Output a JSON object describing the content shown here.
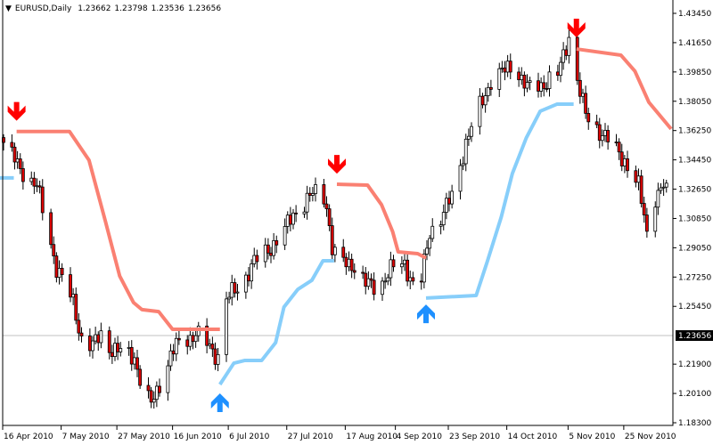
{
  "header": {
    "symbol_timeframe": "EURUSD,Daily",
    "open": "1.23662",
    "high": "1.23798",
    "low": "1.23536",
    "close": "1.23656"
  },
  "colors": {
    "up_body": "#ffffff",
    "down_body": "#e00000",
    "candle_outline": "#000000",
    "upper_line": "#fa8072",
    "lower_line": "#87cefa",
    "sell_arrow": "#ff0000",
    "buy_arrow": "#1e90ff",
    "current_price_line": "#c0c0c0"
  },
  "chart_data": {
    "type": "candlestick",
    "symbol": "EURUSD",
    "timeframe": "Daily",
    "ylim": [
      1.183,
      1.4345
    ],
    "xlim": [
      "2010-04-16",
      "2010-12-12"
    ],
    "y_ticks": [
      "1.43450",
      "1.41650",
      "1.39850",
      "1.38050",
      "1.36250",
      "1.34450",
      "1.32650",
      "1.30850",
      "1.29050",
      "1.27250",
      "1.25450",
      "1.21900",
      "1.20100",
      "1.18300"
    ],
    "x_ticks": [
      {
        "label": "16 Apr 2010",
        "date": "2010-04-16"
      },
      {
        "label": "7 May 2010",
        "date": "2010-05-07"
      },
      {
        "label": "27 May 2010",
        "date": "2010-05-27"
      },
      {
        "label": "16 Jun 2010",
        "date": "2010-06-16"
      },
      {
        "label": "6 Jul 2010",
        "date": "2010-07-06"
      },
      {
        "label": "27 Jul 2010",
        "date": "2010-07-27"
      },
      {
        "label": "17 Aug 2010",
        "date": "2010-08-17"
      },
      {
        "label": "4 Sep 2010",
        "date": "2010-09-04"
      },
      {
        "label": "23 Sep 2010",
        "date": "2010-09-23"
      },
      {
        "label": "14 Oct 2010",
        "date": "2010-10-14"
      },
      {
        "label": "5 Nov 2010",
        "date": "2010-11-05"
      },
      {
        "label": "25 Nov 2010",
        "date": "2010-11-25"
      }
    ],
    "current_price": 1.23656,
    "current_price_label": "1.23656",
    "close_path": [
      [
        "2010-04-16",
        1.3552
      ],
      [
        "2010-04-21",
        1.3415
      ],
      [
        "2010-04-28",
        1.3279
      ],
      [
        "2010-05-02",
        1.3005
      ],
      [
        "2010-05-05",
        1.2786
      ],
      [
        "2010-05-08",
        1.2677
      ],
      [
        "2010-05-11",
        1.2568
      ],
      [
        "2010-05-14",
        1.2349
      ],
      [
        "2010-05-18",
        1.2295
      ],
      [
        "2010-05-21",
        1.2377
      ],
      [
        "2010-05-24",
        1.2295
      ],
      [
        "2010-05-27",
        1.2267
      ],
      [
        "2010-06-02",
        1.224
      ],
      [
        "2010-06-05",
        1.2021
      ],
      [
        "2010-06-08",
        1.1939
      ],
      [
        "2010-06-11",
        1.2076
      ],
      [
        "2010-06-15",
        1.224
      ],
      [
        "2010-06-18",
        1.2322
      ],
      [
        "2010-06-21",
        1.2349
      ],
      [
        "2010-06-24",
        1.2377
      ],
      [
        "2010-06-29",
        1.2295
      ],
      [
        "2010-07-02",
        1.224
      ],
      [
        "2010-07-04",
        1.2568
      ],
      [
        "2010-07-07",
        1.2623
      ],
      [
        "2010-07-10",
        1.2677
      ],
      [
        "2010-07-15",
        1.2814
      ],
      [
        "2010-07-20",
        1.2896
      ],
      [
        "2010-07-25",
        1.2978
      ],
      [
        "2010-07-29",
        1.3115
      ],
      [
        "2010-08-03",
        1.3197
      ],
      [
        "2010-08-08",
        1.3279
      ],
      [
        "2010-08-10",
        1.317
      ],
      [
        "2010-08-12",
        1.2896
      ],
      [
        "2010-08-14",
        1.2814
      ],
      [
        "2010-08-19",
        1.2814
      ],
      [
        "2010-08-24",
        1.2677
      ],
      [
        "2010-08-29",
        1.2677
      ],
      [
        "2010-09-03",
        1.2786
      ],
      [
        "2010-09-07",
        1.2814
      ],
      [
        "2010-09-10",
        1.2677
      ],
      [
        "2010-09-13",
        1.2705
      ],
      [
        "2010-09-16",
        1.3005
      ],
      [
        "2010-09-21",
        1.3115
      ],
      [
        "2010-09-24",
        1.3224
      ],
      [
        "2010-09-29",
        1.3552
      ],
      [
        "2010-10-04",
        1.3771
      ],
      [
        "2010-10-08",
        1.3935
      ],
      [
        "2010-10-13",
        1.399
      ],
      [
        "2010-10-16",
        1.4044
      ],
      [
        "2010-10-21",
        1.388
      ],
      [
        "2010-10-26",
        1.3908
      ],
      [
        "2010-11-01",
        1.3962
      ],
      [
        "2010-11-05",
        1.4208
      ],
      [
        "2010-11-08",
        1.3935
      ],
      [
        "2010-11-11",
        1.3716
      ],
      [
        "2010-11-17",
        1.3607
      ],
      [
        "2010-11-25",
        1.3443
      ],
      [
        "2010-11-30",
        1.3279
      ],
      [
        "2010-12-03",
        1.3005
      ],
      [
        "2010-12-06",
        1.3224
      ],
      [
        "2010-12-09",
        1.3279
      ],
      [
        "2010-12-11",
        1.3197
      ]
    ],
    "upper_lines": [
      [
        [
          "2010-04-21",
          1.3619
        ],
        [
          "2010-05-10",
          1.3619
        ],
        [
          "2010-05-17",
          1.3443
        ],
        [
          "2010-05-23",
          1.306
        ],
        [
          "2010-05-28",
          1.2732
        ],
        [
          "2010-06-02",
          1.2568
        ],
        [
          "2010-06-05",
          1.2525
        ],
        [
          "2010-06-11",
          1.2513
        ],
        [
          "2010-06-16",
          1.2404
        ],
        [
          "2010-07-03",
          1.2404
        ]
      ],
      [
        [
          "2010-08-14",
          1.3295
        ],
        [
          "2010-08-25",
          1.329
        ],
        [
          "2010-08-30",
          1.317
        ],
        [
          "2010-09-03",
          1.3005
        ],
        [
          "2010-09-05",
          1.288
        ],
        [
          "2010-09-12",
          1.2869
        ],
        [
          "2010-09-15",
          1.2842
        ]
      ],
      [
        [
          "2010-11-08",
          1.4126
        ],
        [
          "2010-11-24",
          1.4088
        ],
        [
          "2010-11-29",
          1.399
        ],
        [
          "2010-12-04",
          1.3799
        ],
        [
          "2010-12-12",
          1.3635
        ]
      ]
    ],
    "lower_lines": [
      [
        [
          "2010-04-14",
          1.3334
        ],
        [
          "2010-04-20",
          1.3334
        ]
      ],
      [
        [
          "2010-07-03",
          1.2065
        ],
        [
          "2010-07-08",
          1.2196
        ],
        [
          "2010-07-12",
          1.2213
        ],
        [
          "2010-07-18",
          1.2213
        ],
        [
          "2010-07-23",
          1.2322
        ],
        [
          "2010-07-26",
          1.2541
        ],
        [
          "2010-07-31",
          1.265
        ],
        [
          "2010-08-05",
          1.2705
        ],
        [
          "2010-08-09",
          1.2825
        ],
        [
          "2010-08-13",
          1.2825
        ]
      ],
      [
        [
          "2010-09-15",
          1.2596
        ],
        [
          "2010-10-03",
          1.2612
        ],
        [
          "2010-10-07",
          1.282
        ],
        [
          "2010-10-12",
          1.3093
        ],
        [
          "2010-10-16",
          1.3361
        ],
        [
          "2010-10-21",
          1.358
        ],
        [
          "2010-10-26",
          1.3744
        ],
        [
          "2010-11-01",
          1.3787
        ],
        [
          "2010-11-07",
          1.3787
        ]
      ]
    ],
    "sell_arrows": [
      [
        "2010-04-21",
        1.374
      ],
      [
        "2010-08-14",
        1.3415
      ],
      [
        "2010-11-08",
        1.4252
      ]
    ],
    "buy_arrows": [
      [
        "2010-07-03",
        1.1956
      ],
      [
        "2010-09-15",
        1.2502
      ]
    ]
  }
}
